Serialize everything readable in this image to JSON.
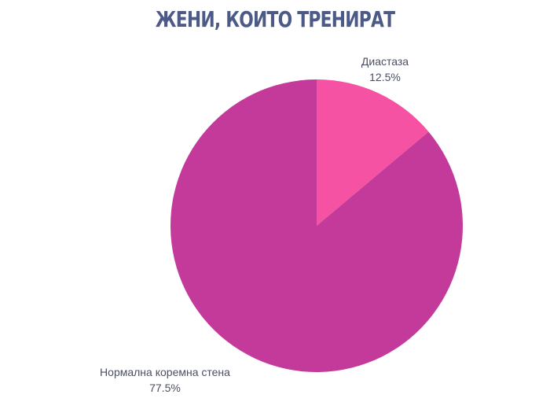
{
  "chart_data": {
    "type": "pie",
    "title": "ЖЕНИ, КОИТО ТРЕНИРАТ",
    "slices": [
      {
        "label": "Диастаза",
        "value": 12.5,
        "value_label": "12.5%",
        "color": "#f552a3"
      },
      {
        "label": "Нормална коремна стена",
        "value": 77.5,
        "value_label": "77.5%",
        "color": "#c43a9a"
      }
    ],
    "legend": "none"
  }
}
